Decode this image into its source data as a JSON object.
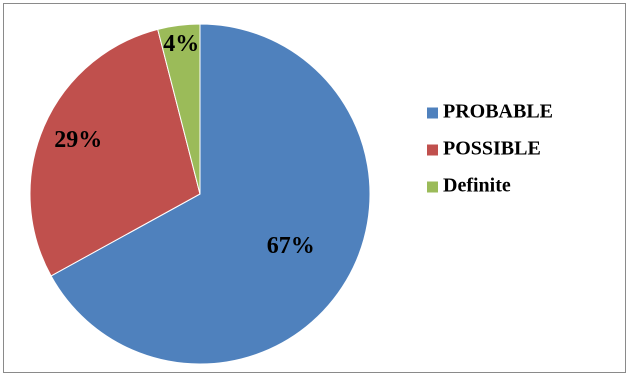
{
  "chart_data": {
    "type": "pie",
    "categories": [
      "PROBABLE",
      "POSSIBLE",
      "Definite"
    ],
    "values": [
      67,
      29,
      4
    ],
    "labels": [
      "67%",
      "29%",
      "4%"
    ],
    "colors": [
      "#4f81bd",
      "#c0504d",
      "#9bbb59"
    ],
    "legend_position": "right",
    "title": ""
  }
}
